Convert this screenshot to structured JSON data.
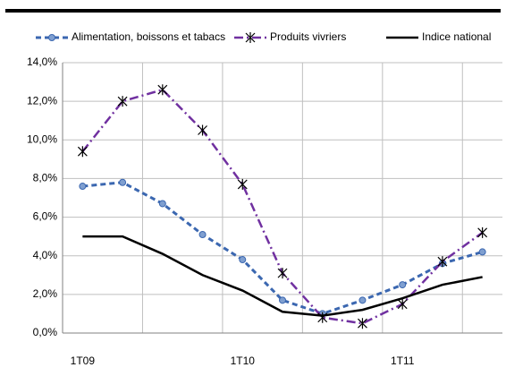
{
  "chart_data": {
    "type": "line",
    "categories": [
      "1T09",
      null,
      null,
      null,
      "1T10",
      null,
      null,
      null,
      "1T11",
      null,
      null
    ],
    "series": [
      {
        "name": "Alimentation, boissons et tabacs",
        "color": "#3b67b0",
        "values": [
          7.6,
          7.8,
          6.7,
          5.1,
          3.8,
          1.7,
          1.0,
          1.7,
          2.5,
          3.6,
          4.2
        ]
      },
      {
        "name": "Produits vivriers",
        "color": "#7030a0",
        "values": [
          9.4,
          12.0,
          12.6,
          10.5,
          7.7,
          3.1,
          0.8,
          0.5,
          1.5,
          3.7,
          5.2
        ]
      },
      {
        "name": "Indice national",
        "color": "#000000",
        "values": [
          5.0,
          5.0,
          4.1,
          3.0,
          2.2,
          1.1,
          0.9,
          1.2,
          1.8,
          2.5,
          2.9
        ]
      }
    ],
    "ylim": [
      0,
      14
    ],
    "yticks": [
      {
        "value": 0,
        "label": "0,0%"
      },
      {
        "value": 2,
        "label": "2,0%"
      },
      {
        "value": 4,
        "label": "4,0%"
      },
      {
        "value": 6,
        "label": "6,0%"
      },
      {
        "value": 8,
        "label": "8,0%"
      },
      {
        "value": 10,
        "label": "10,0%"
      },
      {
        "value": 12,
        "label": "12,0%"
      },
      {
        "value": 14,
        "label": "14,0%"
      }
    ],
    "grid": true,
    "legend": "top"
  }
}
